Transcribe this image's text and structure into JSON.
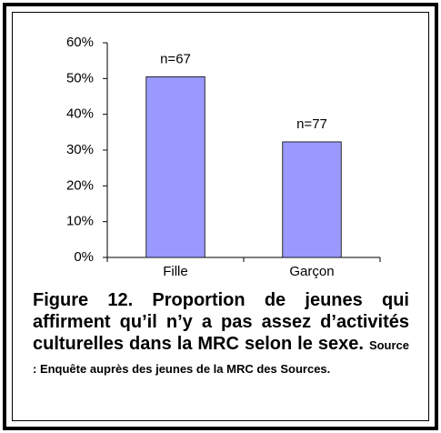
{
  "chart_data": {
    "type": "bar",
    "categories": [
      "Fille",
      "Garçon"
    ],
    "values": [
      50.5,
      32.3
    ],
    "annotations": [
      "n=67",
      "n=77"
    ],
    "color": "#9999ff",
    "ylim": [
      0,
      60
    ],
    "yticks": [
      {
        "value": 0,
        "label": "0%"
      },
      {
        "value": 10,
        "label": "10%"
      },
      {
        "value": 20,
        "label": "20%"
      },
      {
        "value": 30,
        "label": "30%"
      },
      {
        "value": 40,
        "label": "40%"
      },
      {
        "value": 50,
        "label": "50%"
      },
      {
        "value": 60,
        "label": "60%"
      }
    ],
    "grid": false,
    "caption": "Figure 12. Proportion de jeunes qui affirment qu’il n’y a pas assez d’activités culturelles dans la MRC selon le sexe.",
    "source": "Source : Enquête auprès des jeunes de la MRC des Sources."
  }
}
